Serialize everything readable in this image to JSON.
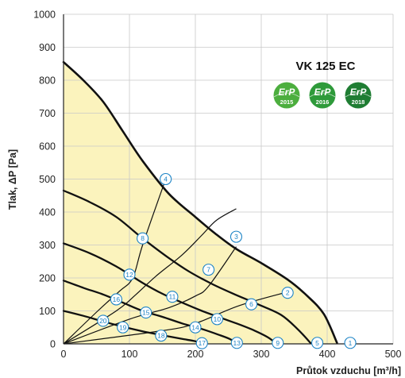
{
  "chart_data": {
    "type": "line",
    "title": "VK 125 EC",
    "xlabel": "Průtok vzduchu [m³/h]",
    "ylabel": "Tlak, ΔP [Pa]",
    "xlim": [
      0,
      500
    ],
    "ylim": [
      0,
      1000
    ],
    "xticks": [
      0,
      100,
      200,
      300,
      400,
      500
    ],
    "yticks": [
      0,
      100,
      200,
      300,
      400,
      500,
      600,
      700,
      800,
      900,
      1000
    ],
    "grid": true,
    "shaded_region": "under-max-curve",
    "fill_color": "#fbf3bd",
    "curve_color": "#111111",
    "marker_color": "#1d84c6",
    "badges": [
      {
        "label": "ErP",
        "year": "2015",
        "color": "#4cae3e"
      },
      {
        "label": "ErP",
        "year": "2016",
        "color": "#2e9a3a"
      },
      {
        "label": "ErP",
        "year": "2018",
        "color": "#1f7d33"
      }
    ],
    "fan_curves": [
      {
        "points": [
          [
            0,
            855
          ],
          [
            30,
            800
          ],
          [
            60,
            735
          ],
          [
            90,
            645
          ],
          [
            120,
            555
          ],
          [
            160,
            455
          ],
          [
            200,
            385
          ],
          [
            230,
            335
          ],
          [
            262,
            288
          ],
          [
            300,
            245
          ],
          [
            340,
            195
          ],
          [
            370,
            145
          ],
          [
            395,
            90
          ],
          [
            415,
            3
          ]
        ],
        "width": 2.6
      },
      {
        "points": [
          [
            0,
            465
          ],
          [
            40,
            430
          ],
          [
            80,
            385
          ],
          [
            120,
            320
          ],
          [
            160,
            260
          ],
          [
            190,
            220
          ],
          [
            225,
            182
          ],
          [
            260,
            150
          ],
          [
            295,
            120
          ],
          [
            330,
            88
          ],
          [
            355,
            45
          ],
          [
            375,
            2
          ]
        ],
        "width": 2.3
      },
      {
        "points": [
          [
            0,
            305
          ],
          [
            40,
            275
          ],
          [
            80,
            235
          ],
          [
            120,
            185
          ],
          [
            150,
            152
          ],
          [
            180,
            125
          ],
          [
            210,
            100
          ],
          [
            240,
            78
          ],
          [
            265,
            60
          ],
          [
            290,
            40
          ],
          [
            310,
            20
          ],
          [
            322,
            2
          ]
        ],
        "width": 2.3
      },
      {
        "points": [
          [
            0,
            192
          ],
          [
            30,
            170
          ],
          [
            60,
            150
          ],
          [
            90,
            125
          ],
          [
            120,
            100
          ],
          [
            150,
            82
          ],
          [
            180,
            62
          ],
          [
            210,
            45
          ],
          [
            235,
            28
          ],
          [
            252,
            15
          ],
          [
            262,
            2
          ]
        ],
        "width": 2.3
      },
      {
        "points": [
          [
            0,
            100
          ],
          [
            30,
            85
          ],
          [
            60,
            68
          ],
          [
            90,
            52
          ],
          [
            120,
            38
          ],
          [
            150,
            26
          ],
          [
            180,
            15
          ],
          [
            200,
            8
          ],
          [
            210,
            2
          ]
        ],
        "width": 2.3
      }
    ],
    "system_curves": [
      {
        "points": [
          [
            0,
            0
          ],
          [
            52,
            100
          ],
          [
            85,
            160
          ],
          [
            105,
            200
          ],
          [
            120,
            300
          ],
          [
            155,
            500
          ]
        ]
      },
      {
        "points": [
          [
            0,
            0
          ],
          [
            80,
            100
          ],
          [
            110,
            150
          ],
          [
            140,
            205
          ],
          [
            180,
            270
          ],
          [
            210,
            330
          ],
          [
            232,
            375
          ],
          [
            262,
            410
          ]
        ]
      },
      {
        "points": [
          [
            0,
            0
          ],
          [
            100,
            75
          ],
          [
            160,
            110
          ],
          [
            200,
            145
          ],
          [
            220,
            175
          ],
          [
            262,
            295
          ]
        ]
      },
      {
        "points": [
          [
            0,
            0
          ],
          [
            150,
            40
          ],
          [
            200,
            62
          ],
          [
            265,
            115
          ],
          [
            335,
            155
          ]
        ]
      }
    ],
    "operating_points": [
      {
        "id": "1",
        "x": 435,
        "y": 3
      },
      {
        "id": "2",
        "x": 340,
        "y": 155
      },
      {
        "id": "3",
        "x": 262,
        "y": 325
      },
      {
        "id": "4",
        "x": 155,
        "y": 500
      },
      {
        "id": "5",
        "x": 385,
        "y": 3
      },
      {
        "id": "6",
        "x": 285,
        "y": 120
      },
      {
        "id": "7",
        "x": 220,
        "y": 225
      },
      {
        "id": "8",
        "x": 120,
        "y": 320
      },
      {
        "id": "9",
        "x": 325,
        "y": 3
      },
      {
        "id": "10",
        "x": 233,
        "y": 75
      },
      {
        "id": "11",
        "x": 165,
        "y": 143
      },
      {
        "id": "12",
        "x": 100,
        "y": 210
      },
      {
        "id": "13",
        "x": 263,
        "y": 3
      },
      {
        "id": "14",
        "x": 200,
        "y": 50
      },
      {
        "id": "15",
        "x": 125,
        "y": 95
      },
      {
        "id": "16",
        "x": 80,
        "y": 135
      },
      {
        "id": "17",
        "x": 210,
        "y": 2
      },
      {
        "id": "18",
        "x": 148,
        "y": 25
      },
      {
        "id": "19",
        "x": 90,
        "y": 50
      },
      {
        "id": "20",
        "x": 60,
        "y": 70
      }
    ]
  }
}
